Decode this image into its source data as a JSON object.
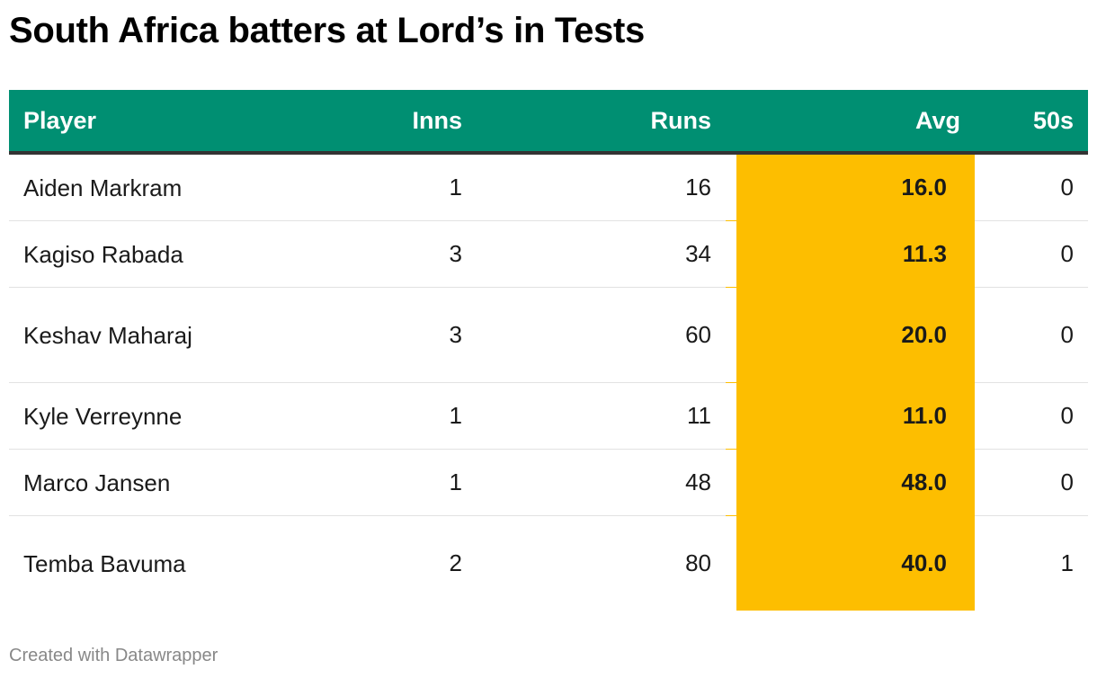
{
  "title": "South Africa batters at Lord’s in Tests",
  "colors": {
    "header_bg": "#008f72",
    "avg_highlight": "#fdbe00"
  },
  "chart_data": {
    "type": "table",
    "columns": [
      "Player",
      "Inns",
      "Runs",
      "Avg",
      "50s"
    ],
    "rows": [
      {
        "player": "Aiden Markram",
        "inns": "1",
        "runs": "16",
        "avg": "16.0",
        "fifties": "0"
      },
      {
        "player": "Kagiso Rabada",
        "inns": "3",
        "runs": "34",
        "avg": "11.3",
        "fifties": "0"
      },
      {
        "player": "Keshav Maharaj",
        "inns": "3",
        "runs": "60",
        "avg": "20.0",
        "fifties": "0"
      },
      {
        "player": "Kyle Verreynne",
        "inns": "1",
        "runs": "11",
        "avg": "11.0",
        "fifties": "0"
      },
      {
        "player": "Marco Jansen",
        "inns": "1",
        "runs": "48",
        "avg": "48.0",
        "fifties": "0"
      },
      {
        "player": "Temba Bavuma",
        "inns": "2",
        "runs": "80",
        "avg": "40.0",
        "fifties": "1"
      }
    ],
    "highlight_column": "Avg"
  },
  "footer": "Created with Datawrapper"
}
